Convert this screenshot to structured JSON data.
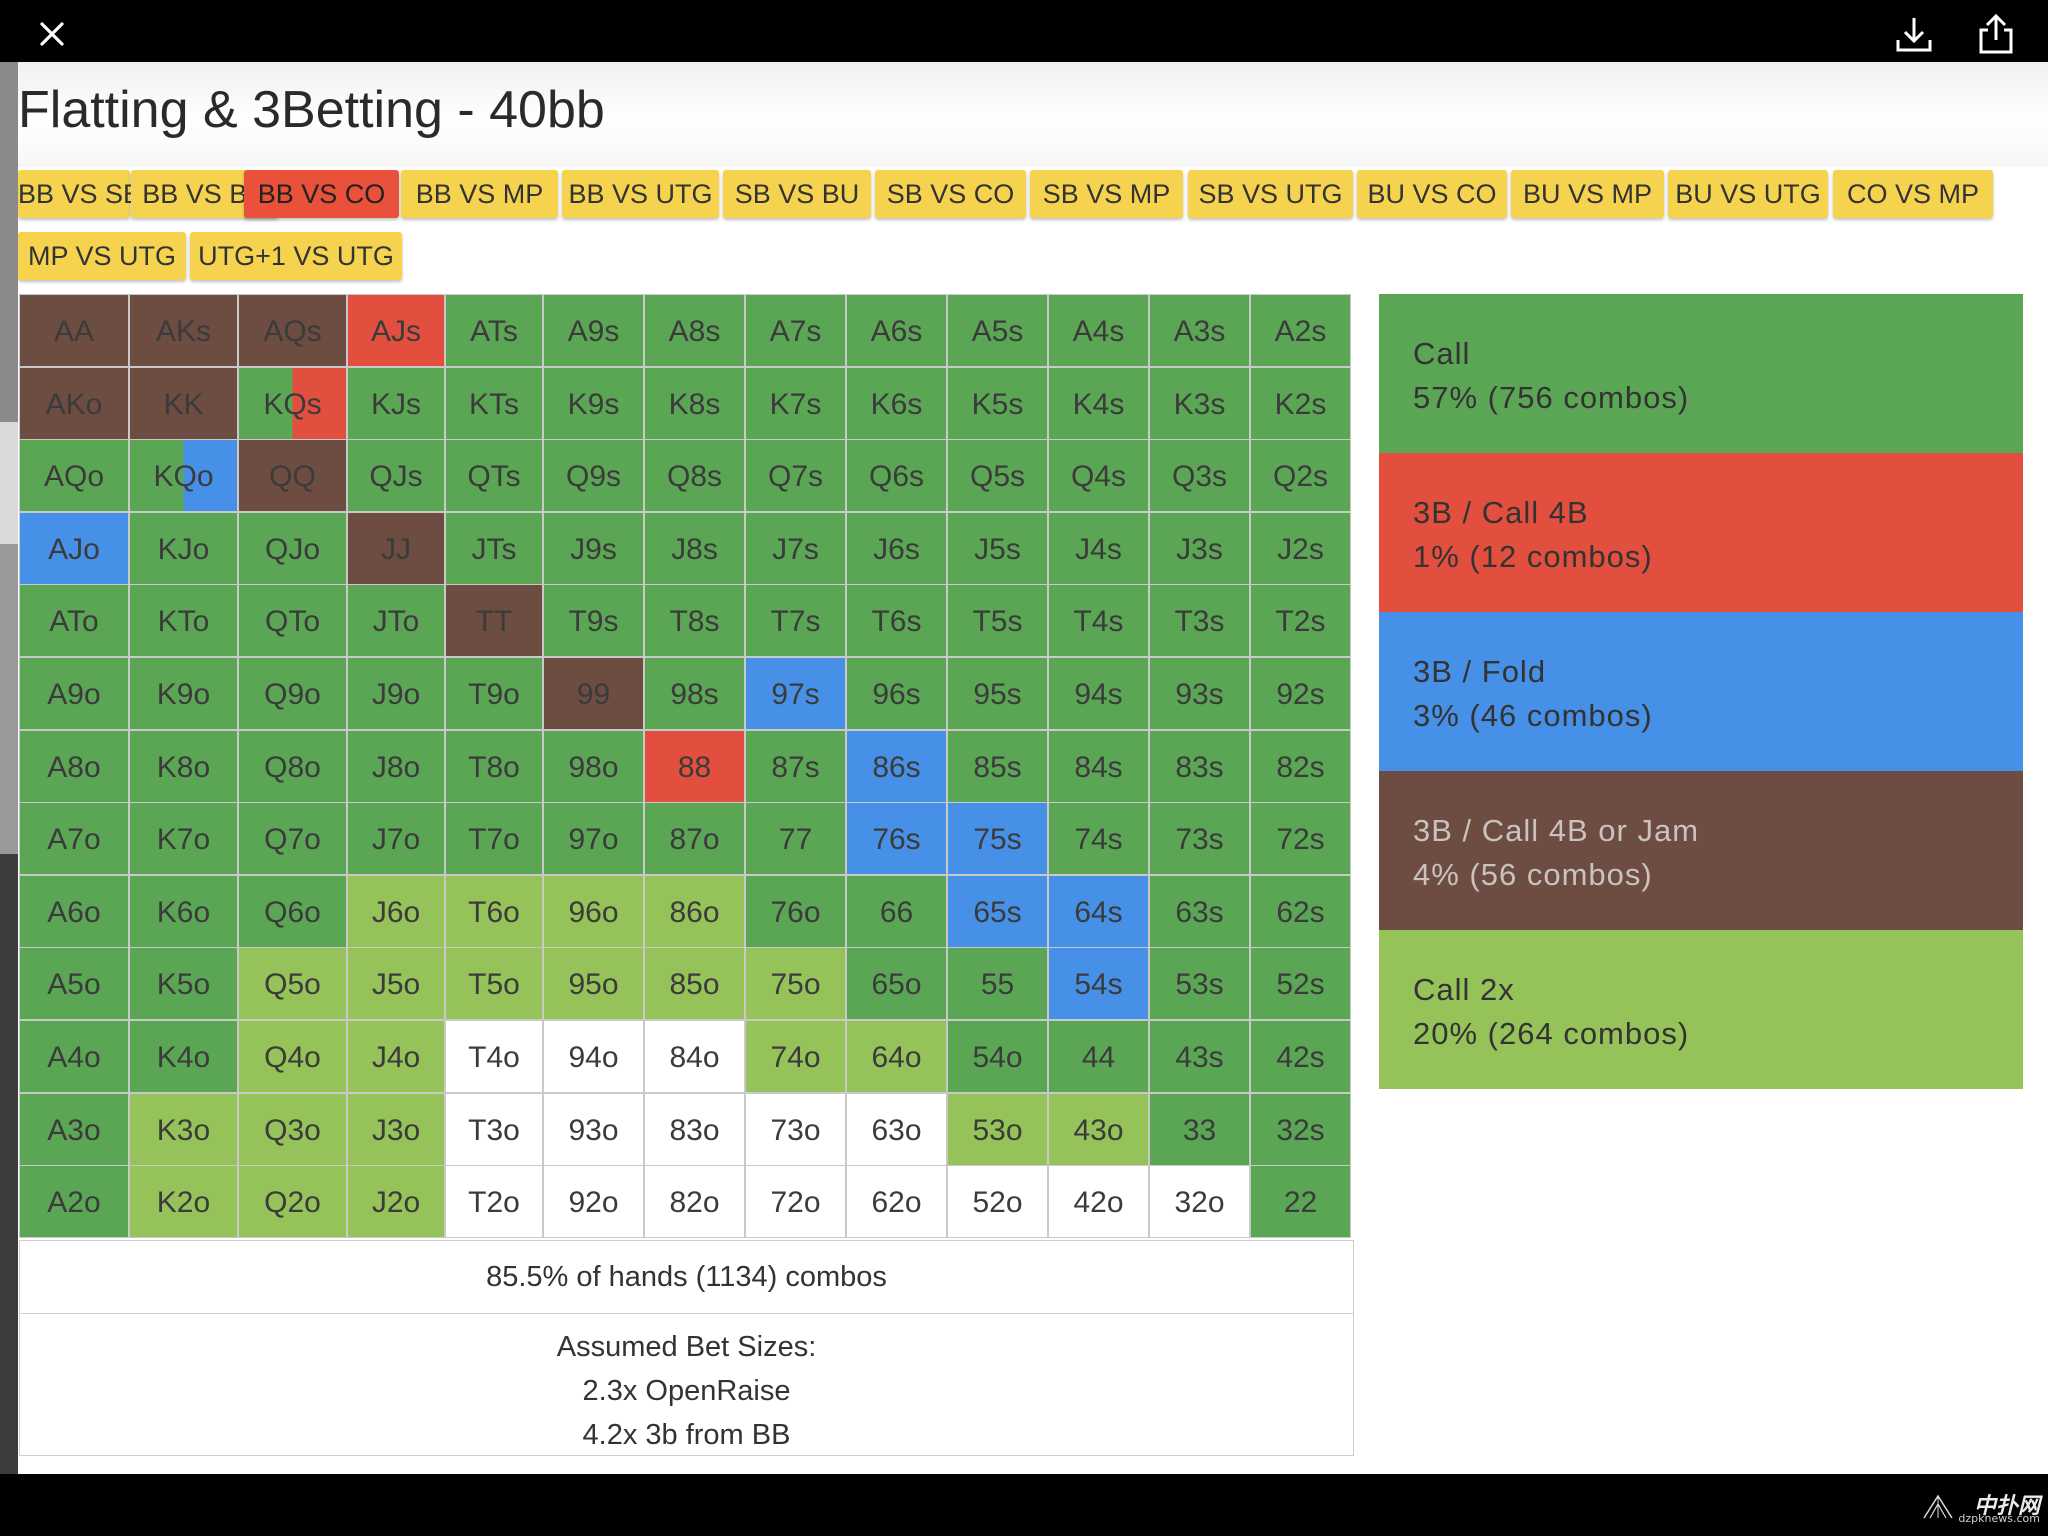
{
  "page_title": "Flatting & 3Betting - 40bb",
  "tabs": [
    {
      "label": "BB VS SB",
      "active": false
    },
    {
      "label": "BB VS BU",
      "active": false
    },
    {
      "label": "BB VS CO",
      "active": true
    },
    {
      "label": "BB VS MP",
      "active": false
    },
    {
      "label": "BB VS UTG",
      "active": false
    },
    {
      "label": "SB VS BU",
      "active": false
    },
    {
      "label": "SB VS CO",
      "active": false
    },
    {
      "label": "SB VS MP",
      "active": false
    },
    {
      "label": "SB VS UTG",
      "active": false
    },
    {
      "label": "BU VS CO",
      "active": false
    },
    {
      "label": "BU VS MP",
      "active": false
    },
    {
      "label": "BU VS UTG",
      "active": false
    },
    {
      "label": "CO VS MP",
      "active": false
    },
    {
      "label": "MP VS UTG",
      "active": false
    },
    {
      "label": "UTG+1 VS UTG",
      "active": false
    }
  ],
  "colors": {
    "call": "#5ba654",
    "threebet_call4b": "#e34f3e",
    "threebet_fold": "#4690e8",
    "threebet_jam": "#6d4c41",
    "call2x": "#96c25a",
    "none": "#ffffff"
  },
  "legend": [
    {
      "key": "call",
      "label": "Call",
      "stat": "57% (756 combos)",
      "text_color": "#333333"
    },
    {
      "key": "threebet_call4b",
      "label": "3B / Call 4B",
      "stat": "1% (12 combos)",
      "text_color": "#333333"
    },
    {
      "key": "threebet_fold",
      "label": "3B / Fold",
      "stat": "3% (46 combos)",
      "text_color": "#333333"
    },
    {
      "key": "threebet_jam",
      "label": "3B / Call 4B or Jam",
      "stat": "4% (56 combos)",
      "text_color": "#c9c2bf"
    },
    {
      "key": "call2x",
      "label": "Call 2x",
      "stat": "20% (264 combos)",
      "text_color": "#333333"
    }
  ],
  "grid": [
    [
      "AA",
      "AKs",
      "AQs",
      "AJs",
      "ATs",
      "A9s",
      "A8s",
      "A7s",
      "A6s",
      "A5s",
      "A4s",
      "A3s",
      "A2s"
    ],
    [
      "AKo",
      "KK",
      "KQs",
      "KJs",
      "KTs",
      "K9s",
      "K8s",
      "K7s",
      "K6s",
      "K5s",
      "K4s",
      "K3s",
      "K2s"
    ],
    [
      "AQo",
      "KQo",
      "QQ",
      "QJs",
      "QTs",
      "Q9s",
      "Q8s",
      "Q7s",
      "Q6s",
      "Q5s",
      "Q4s",
      "Q3s",
      "Q2s"
    ],
    [
      "AJo",
      "KJo",
      "QJo",
      "JJ",
      "JTs",
      "J9s",
      "J8s",
      "J7s",
      "J6s",
      "J5s",
      "J4s",
      "J3s",
      "J2s"
    ],
    [
      "ATo",
      "KTo",
      "QTo",
      "JTo",
      "TT",
      "T9s",
      "T8s",
      "T7s",
      "T6s",
      "T5s",
      "T4s",
      "T3s",
      "T2s"
    ],
    [
      "A9o",
      "K9o",
      "Q9o",
      "J9o",
      "T9o",
      "99",
      "98s",
      "97s",
      "96s",
      "95s",
      "94s",
      "93s",
      "92s"
    ],
    [
      "A8o",
      "K8o",
      "Q8o",
      "J8o",
      "T8o",
      "98o",
      "88",
      "87s",
      "86s",
      "85s",
      "84s",
      "83s",
      "82s"
    ],
    [
      "A7o",
      "K7o",
      "Q7o",
      "J7o",
      "T7o",
      "97o",
      "87o",
      "77",
      "76s",
      "75s",
      "74s",
      "73s",
      "72s"
    ],
    [
      "A6o",
      "K6o",
      "Q6o",
      "J6o",
      "T6o",
      "96o",
      "86o",
      "76o",
      "66",
      "65s",
      "64s",
      "63s",
      "62s"
    ],
    [
      "A5o",
      "K5o",
      "Q5o",
      "J5o",
      "T5o",
      "95o",
      "85o",
      "75o",
      "65o",
      "55",
      "54s",
      "53s",
      "52s"
    ],
    [
      "A4o",
      "K4o",
      "Q4o",
      "J4o",
      "T4o",
      "94o",
      "84o",
      "74o",
      "64o",
      "54o",
      "44",
      "43s",
      "42s"
    ],
    [
      "A3o",
      "K3o",
      "Q3o",
      "J3o",
      "T3o",
      "93o",
      "83o",
      "73o",
      "63o",
      "53o",
      "43o",
      "33",
      "32s"
    ],
    [
      "A2o",
      "K2o",
      "Q2o",
      "J2o",
      "T2o",
      "92o",
      "82o",
      "72o",
      "62o",
      "52o",
      "42o",
      "32o",
      "22"
    ]
  ],
  "grid_actions": [
    [
      "threebet_jam",
      "threebet_jam",
      "threebet_jam",
      "threebet_call4b",
      "call",
      "call",
      "call",
      "call",
      "call",
      "call",
      "call",
      "call",
      "call"
    ],
    [
      "threebet_jam",
      "threebet_jam",
      "call|threebet_call4b",
      "call",
      "call",
      "call",
      "call",
      "call",
      "call",
      "call",
      "call",
      "call",
      "call"
    ],
    [
      "call",
      "call|threebet_fold",
      "threebet_jam",
      "call",
      "call",
      "call",
      "call",
      "call",
      "call",
      "call",
      "call",
      "call",
      "call"
    ],
    [
      "threebet_fold",
      "call",
      "call",
      "threebet_jam",
      "call",
      "call",
      "call",
      "call",
      "call",
      "call",
      "call",
      "call",
      "call"
    ],
    [
      "call",
      "call",
      "call",
      "call",
      "threebet_jam",
      "call",
      "call",
      "call",
      "call",
      "call",
      "call",
      "call",
      "call"
    ],
    [
      "call",
      "call",
      "call",
      "call",
      "call",
      "threebet_jam",
      "call",
      "threebet_fold",
      "call",
      "call",
      "call",
      "call",
      "call"
    ],
    [
      "call",
      "call",
      "call",
      "call",
      "call",
      "call",
      "threebet_call4b",
      "call",
      "threebet_fold",
      "call",
      "call",
      "call",
      "call"
    ],
    [
      "call",
      "call",
      "call",
      "call",
      "call",
      "call",
      "call",
      "call",
      "threebet_fold",
      "threebet_fold",
      "call",
      "call",
      "call"
    ],
    [
      "call",
      "call",
      "call",
      "call2x",
      "call2x",
      "call2x",
      "call2x",
      "call",
      "call",
      "threebet_fold",
      "threebet_fold",
      "call",
      "call"
    ],
    [
      "call",
      "call",
      "call2x",
      "call2x",
      "call2x",
      "call2x",
      "call2x",
      "call2x",
      "call",
      "call",
      "threebet_fold",
      "call",
      "call"
    ],
    [
      "call",
      "call",
      "call2x",
      "call2x",
      "none",
      "none",
      "none",
      "call2x",
      "call2x",
      "call",
      "call",
      "call",
      "call"
    ],
    [
      "call",
      "call2x",
      "call2x",
      "call2x",
      "none",
      "none",
      "none",
      "none",
      "none",
      "call2x",
      "call2x",
      "call",
      "call"
    ],
    [
      "call",
      "call2x",
      "call2x",
      "call2x",
      "none",
      "none",
      "none",
      "none",
      "none",
      "none",
      "none",
      "none",
      "call"
    ]
  ],
  "summary": "85.5% of hands (1134) combos",
  "assumed": {
    "title": "Assumed Bet Sizes:",
    "line1": "2.3x OpenRaise",
    "line2": "4.2x 3b from BB"
  },
  "watermark": {
    "main": "中扑网",
    "sub": "dzpknews.com"
  },
  "icons": {
    "close": "close-icon",
    "download": "download-icon",
    "share": "share-icon"
  }
}
